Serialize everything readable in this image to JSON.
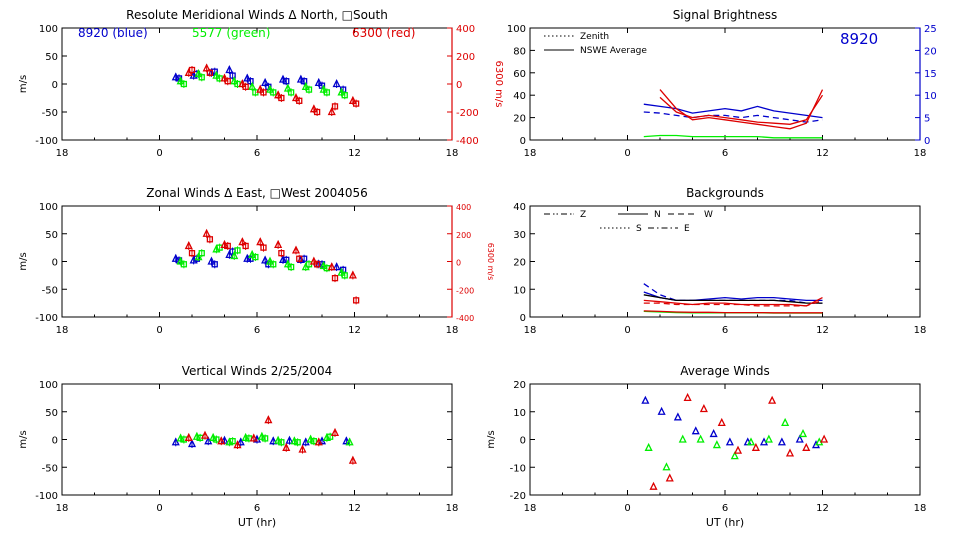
{
  "colors": {
    "blue": "#0000cc",
    "green": "#00ee00",
    "red": "#dd0000",
    "axis": "#000000"
  },
  "ut_ticks": [
    18,
    0,
    6,
    12,
    18
  ],
  "chart_data": [
    {
      "type": "scatter",
      "title": "Resolute Meridional Winds Δ North, □South",
      "ylabel": "m/s",
      "y_ticks": [
        100,
        50,
        0,
        -50,
        -100
      ],
      "ylim": [
        -100,
        100
      ],
      "xlim": [
        -6,
        18
      ],
      "right_axis": {
        "label": "6300 m/s",
        "ticks": [
          "400",
          "200",
          "0",
          "-200",
          "-400"
        ],
        "color": "red"
      },
      "top_labels": [
        {
          "text": "8920  (blue)",
          "color": "blue"
        },
        {
          "text": "5577 (green)",
          "color": "green"
        },
        {
          "text": "6300 (red)",
          "color": "red"
        }
      ],
      "series": [
        {
          "color": "blue",
          "markers": "triangle",
          "x": [
            1.0,
            2.1,
            3.2,
            4.3,
            5.4,
            6.5,
            7.6,
            8.7,
            9.8,
            10.9
          ],
          "y": [
            12,
            15,
            20,
            25,
            10,
            2,
            8,
            8,
            2,
            0
          ]
        },
        {
          "color": "blue",
          "markers": "square",
          "x": [
            1.2,
            2.3,
            3.4,
            4.5,
            5.6,
            6.7,
            7.8,
            8.9,
            10.0,
            11.3
          ],
          "y": [
            10,
            18,
            22,
            15,
            5,
            -5,
            5,
            5,
            -3,
            -10
          ]
        },
        {
          "color": "green",
          "markers": "triangle",
          "x": [
            1.3,
            2.4,
            3.5,
            4.6,
            5.7,
            6.8,
            7.9,
            9.0,
            10.1,
            11.2
          ],
          "y": [
            5,
            18,
            15,
            5,
            -5,
            -10,
            -8,
            -5,
            -10,
            -15
          ]
        },
        {
          "color": "green",
          "markers": "square",
          "x": [
            1.5,
            2.6,
            3.7,
            4.8,
            5.9,
            7.0,
            8.1,
            9.2,
            10.3,
            11.4
          ],
          "y": [
            0,
            12,
            10,
            0,
            -15,
            -15,
            -15,
            -10,
            -15,
            -20
          ]
        },
        {
          "color": "red",
          "markers": "triangle",
          "x": [
            1.8,
            2.9,
            4.0,
            5.1,
            6.2,
            7.3,
            8.4,
            9.5,
            10.6,
            11.9
          ],
          "y": [
            20,
            28,
            10,
            0,
            -10,
            -20,
            -25,
            -45,
            -50,
            -30
          ]
        },
        {
          "color": "red",
          "markers": "square",
          "x": [
            2.0,
            3.1,
            4.2,
            5.3,
            6.4,
            7.5,
            8.6,
            9.7,
            10.8,
            12.1
          ],
          "y": [
            25,
            20,
            5,
            -5,
            -15,
            -25,
            -30,
            -50,
            -40,
            -35
          ]
        }
      ]
    },
    {
      "type": "line",
      "title": "Signal Brightness",
      "y_ticks": [
        100,
        80,
        60,
        40,
        20,
        0
      ],
      "ylim": [
        0,
        100
      ],
      "xlim": [
        -6,
        18
      ],
      "right_axis": {
        "ticks": [
          "25",
          "20",
          "15",
          "10",
          "5",
          "0"
        ],
        "color": "blue"
      },
      "annotation": "8920",
      "legend": [
        {
          "label": "Zenith",
          "style": "dotted"
        },
        {
          "label": "NSWE Average",
          "style": "solid"
        }
      ],
      "x": [
        1,
        2,
        3,
        4,
        5,
        6,
        7,
        8,
        9,
        10,
        11,
        12
      ],
      "series": [
        {
          "color": "blue",
          "style": "solid",
          "values": [
            32,
            30,
            28,
            24,
            26,
            28,
            26,
            30,
            26,
            24,
            22,
            20
          ]
        },
        {
          "color": "blue",
          "style": "dashed",
          "values": [
            25,
            24,
            22,
            20,
            22,
            22,
            20,
            22,
            20,
            18,
            16,
            18
          ]
        },
        {
          "color": "red",
          "style": "solid",
          "values": [
            null,
            45,
            28,
            18,
            20,
            18,
            16,
            14,
            12,
            10,
            15,
            45
          ]
        },
        {
          "color": "red",
          "style": "solid",
          "values": [
            null,
            38,
            25,
            20,
            22,
            20,
            18,
            16,
            15,
            14,
            18,
            40
          ]
        },
        {
          "color": "green",
          "style": "solid",
          "values": [
            3,
            4,
            4,
            3,
            3,
            3,
            3,
            3,
            2,
            2,
            2,
            2
          ]
        }
      ]
    },
    {
      "type": "scatter",
      "title": "Zonal Winds Δ East, □West 2004056",
      "ylabel": "m/s",
      "y_ticks": [
        100,
        50,
        0,
        -50,
        -100
      ],
      "ylim": [
        -100,
        100
      ],
      "xlim": [
        -6,
        18
      ],
      "right_axis": {
        "label": "6300 m/s",
        "ticks": [
          "400",
          "200",
          "0",
          "-200",
          "-400"
        ],
        "color": "red"
      },
      "series": [
        {
          "color": "blue",
          "markers": "triangle",
          "x": [
            1.0,
            2.1,
            3.2,
            4.3,
            5.4,
            6.5,
            7.6,
            8.7,
            9.8,
            10.9
          ],
          "y": [
            5,
            2,
            0,
            12,
            5,
            2,
            3,
            3,
            -5,
            -10
          ]
        },
        {
          "color": "blue",
          "markers": "square",
          "x": [
            1.2,
            2.3,
            3.4,
            4.5,
            5.6,
            6.7,
            7.8,
            8.9,
            10.0,
            11.3
          ],
          "y": [
            2,
            5,
            -5,
            18,
            5,
            -5,
            3,
            5,
            -5,
            -15
          ]
        },
        {
          "color": "green",
          "markers": "triangle",
          "x": [
            1.3,
            2.4,
            3.5,
            4.6,
            5.7,
            6.8,
            7.9,
            9.0,
            10.1,
            11.2
          ],
          "y": [
            0,
            8,
            22,
            10,
            12,
            0,
            -5,
            -10,
            -8,
            -20
          ]
        },
        {
          "color": "green",
          "markers": "square",
          "x": [
            1.5,
            2.6,
            3.7,
            4.8,
            5.9,
            7.0,
            8.1,
            9.2,
            10.3,
            11.4
          ],
          "y": [
            -5,
            15,
            25,
            20,
            8,
            -5,
            -10,
            -5,
            -12,
            -25
          ]
        },
        {
          "color": "red",
          "markers": "triangle",
          "x": [
            1.8,
            2.9,
            4.0,
            5.1,
            6.2,
            7.3,
            8.4,
            9.5,
            10.6,
            11.9
          ],
          "y": [
            28,
            50,
            30,
            35,
            35,
            30,
            20,
            0,
            -10,
            -25
          ]
        },
        {
          "color": "red",
          "markers": "square",
          "x": [
            2.0,
            3.1,
            4.2,
            5.3,
            6.4,
            7.5,
            8.6,
            9.7,
            10.8,
            12.1
          ],
          "y": [
            15,
            40,
            28,
            28,
            25,
            15,
            5,
            -5,
            -30,
            -70
          ]
        }
      ]
    },
    {
      "type": "line",
      "title": "Backgrounds",
      "y_ticks": [
        40,
        30,
        20,
        10,
        0
      ],
      "ylim": [
        0,
        40
      ],
      "xlim": [
        -6,
        18
      ],
      "legend": [
        {
          "label": "Z",
          "style": "dashdotdot"
        },
        {
          "label": "N",
          "style": "solid"
        },
        {
          "label": "W",
          "style": "dashed"
        },
        {
          "label": "S",
          "style": "dotted"
        },
        {
          "label": "E",
          "style": "dashdot"
        }
      ],
      "x": [
        1,
        2,
        3,
        4,
        5,
        6,
        7,
        8,
        9,
        10,
        11,
        12
      ],
      "series": [
        {
          "color": "blue",
          "style": "dashed",
          "values": [
            12,
            8,
            6,
            6,
            6,
            6,
            6,
            6,
            6,
            6,
            5,
            5
          ]
        },
        {
          "color": "blue",
          "style": "solid",
          "values": [
            9,
            7,
            6,
            6,
            6.5,
            7,
            6.5,
            7,
            7,
            6.5,
            6,
            6
          ]
        },
        {
          "color": "black",
          "style": "solid",
          "values": [
            8,
            7,
            6,
            6,
            6,
            6,
            6,
            6,
            6,
            5.5,
            5,
            5
          ]
        },
        {
          "color": "red",
          "style": "solid",
          "values": [
            6,
            5.5,
            5,
            4.5,
            5,
            5,
            4.5,
            4.5,
            4.5,
            4.5,
            4,
            7
          ]
        },
        {
          "color": "red",
          "style": "dashed",
          "values": [
            5,
            5,
            4.5,
            4.5,
            4.5,
            4.5,
            4.5,
            4,
            4,
            4,
            4,
            6
          ]
        },
        {
          "color": "green",
          "style": "solid",
          "values": [
            2,
            1.8,
            1.6,
            1.5,
            1.5,
            1.5,
            1.5,
            1.5,
            1.4,
            1.4,
            1.4,
            1.4
          ]
        },
        {
          "color": "red",
          "style": "solid",
          "values": [
            2.2,
            2.0,
            1.8,
            1.7,
            1.7,
            1.6,
            1.6,
            1.6,
            1.5,
            1.5,
            1.5,
            1.5
          ]
        }
      ]
    },
    {
      "type": "scatter",
      "title": "Vertical Winds 2/25/2004",
      "ylabel": "m/s",
      "xlabel": "UT (hr)",
      "y_ticks": [
        100,
        50,
        0,
        -50,
        -100
      ],
      "ylim": [
        -100,
        100
      ],
      "xlim": [
        -6,
        18
      ],
      "series": [
        {
          "color": "blue",
          "markers": "triangle",
          "x": [
            1.0,
            2.0,
            3.0,
            4.0,
            5.0,
            6.0,
            7.0,
            8.0,
            9.0,
            10.0,
            11.5
          ],
          "y": [
            -5,
            -8,
            -3,
            -2,
            -5,
            0,
            -3,
            -2,
            -5,
            -3,
            -3
          ]
        },
        {
          "color": "green",
          "markers": "triangle",
          "x": [
            1.3,
            2.3,
            3.3,
            4.3,
            5.3,
            6.3,
            7.3,
            8.3,
            9.3,
            10.3,
            11.7
          ],
          "y": [
            2,
            5,
            3,
            -5,
            3,
            5,
            -2,
            -3,
            0,
            3,
            -5
          ]
        },
        {
          "color": "green",
          "markers": "square",
          "x": [
            1.5,
            2.5,
            3.5,
            4.5,
            5.5,
            6.5,
            7.5,
            8.5,
            9.5,
            10.5
          ],
          "y": [
            0,
            3,
            0,
            -3,
            2,
            2,
            -5,
            -5,
            -3,
            5
          ]
        },
        {
          "color": "red",
          "markers": "triangle",
          "x": [
            1.8,
            2.8,
            3.8,
            4.8,
            5.8,
            6.7,
            7.8,
            8.8,
            9.8,
            10.8,
            11.9
          ],
          "y": [
            3,
            7,
            -3,
            -10,
            2,
            35,
            -15,
            -18,
            -5,
            12,
            -38
          ]
        }
      ]
    },
    {
      "type": "scatter",
      "title": "Average Winds",
      "ylabel": "m/s",
      "xlabel": "UT (hr)",
      "y_ticks": [
        20,
        10,
        0,
        -10,
        -20
      ],
      "ylim": [
        -20,
        20
      ],
      "xlim": [
        -6,
        18
      ],
      "series": [
        {
          "color": "blue",
          "markers": "triangle",
          "x": [
            1.1,
            2.1,
            3.1,
            4.2,
            5.3,
            6.3,
            7.4,
            8.4,
            9.5,
            10.6,
            11.6
          ],
          "y": [
            14,
            10,
            8,
            3,
            2,
            -1,
            -1,
            -1,
            -1,
            0,
            -2
          ]
        },
        {
          "color": "green",
          "markers": "triangle",
          "x": [
            1.3,
            2.4,
            3.4,
            4.5,
            5.5,
            6.6,
            7.6,
            8.7,
            9.7,
            10.8,
            11.8
          ],
          "y": [
            -3,
            -10,
            0,
            0,
            -2,
            -6,
            -1,
            0,
            6,
            2,
            -1
          ]
        },
        {
          "color": "red",
          "markers": "triangle",
          "x": [
            1.6,
            2.6,
            3.7,
            4.7,
            5.8,
            6.8,
            7.9,
            8.9,
            10.0,
            11.0,
            12.1
          ],
          "y": [
            -17,
            -14,
            15,
            11,
            6,
            -4,
            -3,
            14,
            -5,
            -3,
            0
          ]
        }
      ]
    }
  ]
}
